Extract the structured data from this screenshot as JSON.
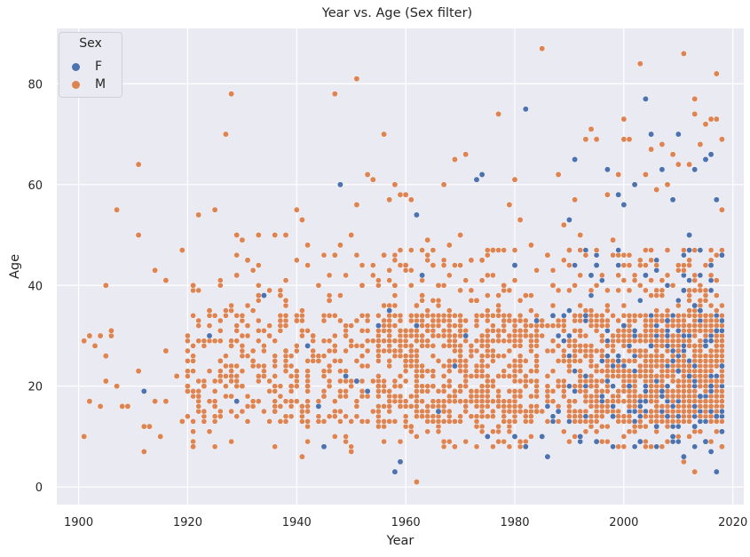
{
  "chart_data": {
    "type": "scatter",
    "title": "Year vs. Age (Sex filter)",
    "xlabel": "Year",
    "ylabel": "Age",
    "xlim": [
      1896,
      2022
    ],
    "ylim": [
      -3.5,
      91
    ],
    "xticks": [
      1900,
      1920,
      1940,
      1960,
      1980,
      2000,
      2020
    ],
    "yticks": [
      0,
      20,
      40,
      60,
      80
    ],
    "grid": true,
    "legend": {
      "title": "Sex",
      "position": "top-left"
    },
    "series": [
      {
        "name": "F",
        "color": "#4c72b0",
        "points": [
          [
            1912,
            19
          ],
          [
            1924,
            30
          ],
          [
            1929,
            17
          ],
          [
            1934,
            38
          ],
          [
            1942,
            28
          ],
          [
            1944,
            16
          ],
          [
            1945,
            8
          ],
          [
            1948,
            60
          ],
          [
            1949,
            22
          ],
          [
            1951,
            21
          ],
          [
            1953,
            19
          ],
          [
            1955,
            32
          ],
          [
            1957,
            35
          ],
          [
            1958,
            3
          ],
          [
            1959,
            5
          ],
          [
            1962,
            54
          ],
          [
            1962,
            32
          ],
          [
            1963,
            42
          ],
          [
            1966,
            15
          ],
          [
            1969,
            24
          ],
          [
            1971,
            30
          ],
          [
            1973,
            61
          ],
          [
            1974,
            62
          ],
          [
            1975,
            10
          ],
          [
            1980,
            44
          ],
          [
            1980,
            10
          ],
          [
            1982,
            75
          ],
          [
            1982,
            8
          ],
          [
            1984,
            33
          ],
          [
            1985,
            10
          ],
          [
            1986,
            6
          ],
          [
            1987,
            34
          ],
          [
            1988,
            15
          ],
          [
            1990,
            53
          ],
          [
            1991,
            65
          ],
          [
            1992,
            10
          ],
          [
            1993,
            34
          ],
          [
            1994,
            42
          ],
          [
            1995,
            44
          ],
          [
            1995,
            9
          ],
          [
            1997,
            63
          ],
          [
            1998,
            14
          ],
          [
            1999,
            58
          ],
          [
            2000,
            56
          ],
          [
            2000,
            32
          ],
          [
            2001,
            20
          ],
          [
            2002,
            60
          ],
          [
            2003,
            9
          ],
          [
            2004,
            77
          ],
          [
            2004,
            42
          ],
          [
            2005,
            70
          ],
          [
            2005,
            28
          ],
          [
            2006,
            12
          ],
          [
            2007,
            63
          ],
          [
            2007,
            19
          ],
          [
            2008,
            33
          ],
          [
            2008,
            14
          ],
          [
            2009,
            57
          ],
          [
            2009,
            10
          ],
          [
            2010,
            70
          ],
          [
            2010,
            23
          ],
          [
            2011,
            39
          ],
          [
            2011,
            6
          ],
          [
            2012,
            50
          ],
          [
            2012,
            22
          ],
          [
            2013,
            63
          ],
          [
            2013,
            36
          ],
          [
            2013,
            12
          ],
          [
            2014,
            35
          ],
          [
            2014,
            18
          ],
          [
            2015,
            65
          ],
          [
            2015,
            28
          ],
          [
            2015,
            9
          ],
          [
            2016,
            66
          ],
          [
            2016,
            44
          ],
          [
            2016,
            20
          ],
          [
            2016,
            7
          ],
          [
            2017,
            57
          ],
          [
            2017,
            31
          ],
          [
            2017,
            14
          ],
          [
            2017,
            3
          ],
          [
            2018,
            46
          ],
          [
            2018,
            24
          ],
          [
            2018,
            11
          ]
        ]
      },
      {
        "name": "M",
        "color": "#dd8452",
        "points": [
          [
            1901,
            10
          ],
          [
            1901,
            29
          ],
          [
            1902,
            17
          ],
          [
            1902,
            30
          ],
          [
            1903,
            28
          ],
          [
            1904,
            16
          ],
          [
            1904,
            30
          ],
          [
            1905,
            21
          ],
          [
            1905,
            26
          ],
          [
            1905,
            40
          ],
          [
            1906,
            30
          ],
          [
            1906,
            31
          ],
          [
            1907,
            20
          ],
          [
            1907,
            55
          ],
          [
            1908,
            16
          ],
          [
            1909,
            16
          ],
          [
            1911,
            23
          ],
          [
            1911,
            50
          ],
          [
            1911,
            64
          ],
          [
            1912,
            7
          ],
          [
            1912,
            12
          ],
          [
            1913,
            12
          ],
          [
            1914,
            17
          ],
          [
            1914,
            43
          ],
          [
            1915,
            10
          ],
          [
            1916,
            17
          ],
          [
            1916,
            27
          ],
          [
            1916,
            41
          ],
          [
            1918,
            22
          ],
          [
            1919,
            47
          ],
          [
            1919,
            13
          ],
          [
            1920,
            19
          ],
          [
            1920,
            20
          ],
          [
            1921,
            40
          ],
          [
            1921,
            8
          ],
          [
            1922,
            54
          ],
          [
            1922,
            18
          ],
          [
            1923,
            20
          ],
          [
            1924,
            35
          ],
          [
            1925,
            55
          ],
          [
            1925,
            16
          ],
          [
            1926,
            25
          ],
          [
            1927,
            70
          ],
          [
            1928,
            78
          ],
          [
            1928,
            28
          ],
          [
            1929,
            50
          ],
          [
            1929,
            42
          ],
          [
            1930,
            49
          ],
          [
            1930,
            20
          ],
          [
            1931,
            45
          ],
          [
            1932,
            25
          ],
          [
            1933,
            50
          ],
          [
            1933,
            38
          ],
          [
            1934,
            22
          ],
          [
            1935,
            30
          ],
          [
            1936,
            50
          ],
          [
            1936,
            15
          ],
          [
            1937,
            38
          ],
          [
            1938,
            50
          ],
          [
            1938,
            27
          ],
          [
            1939,
            20
          ],
          [
            1940,
            55
          ],
          [
            1940,
            33
          ],
          [
            1941,
            53
          ],
          [
            1941,
            6
          ],
          [
            1942,
            48
          ],
          [
            1942,
            20
          ],
          [
            1943,
            30
          ],
          [
            1944,
            25
          ],
          [
            1945,
            18
          ],
          [
            1946,
            37
          ],
          [
            1947,
            78
          ],
          [
            1947,
            46
          ],
          [
            1948,
            48
          ],
          [
            1949,
            30
          ],
          [
            1950,
            50
          ],
          [
            1950,
            7
          ],
          [
            1951,
            81
          ],
          [
            1951,
            56
          ],
          [
            1952,
            40
          ],
          [
            1953,
            62
          ],
          [
            1954,
            61
          ],
          [
            1955,
            20
          ],
          [
            1956,
            70
          ],
          [
            1956,
            46
          ],
          [
            1957,
            57
          ],
          [
            1958,
            60
          ],
          [
            1958,
            40
          ],
          [
            1959,
            58
          ],
          [
            1959,
            16
          ],
          [
            1960,
            58
          ],
          [
            1960,
            44
          ],
          [
            1960,
            25
          ],
          [
            1961,
            57
          ],
          [
            1961,
            12
          ],
          [
            1962,
            1
          ],
          [
            1962,
            36
          ],
          [
            1963,
            38
          ],
          [
            1964,
            49
          ],
          [
            1965,
            44
          ],
          [
            1965,
            20
          ],
          [
            1966,
            40
          ],
          [
            1967,
            60
          ],
          [
            1967,
            28
          ],
          [
            1968,
            48
          ],
          [
            1969,
            65
          ],
          [
            1969,
            8
          ],
          [
            1970,
            50
          ],
          [
            1971,
            66
          ],
          [
            1972,
            45
          ],
          [
            1973,
            37
          ],
          [
            1974,
            45
          ],
          [
            1975,
            28
          ],
          [
            1976,
            47
          ],
          [
            1977,
            74
          ],
          [
            1978,
            40
          ],
          [
            1979,
            56
          ],
          [
            1980,
            61
          ],
          [
            1981,
            53
          ],
          [
            1982,
            38
          ],
          [
            1983,
            48
          ],
          [
            1984,
            15
          ],
          [
            1985,
            87
          ],
          [
            1986,
            46
          ],
          [
            1987,
            40
          ],
          [
            1988,
            62
          ],
          [
            1989,
            52
          ],
          [
            1990,
            47
          ],
          [
            1991,
            57
          ],
          [
            1992,
            50
          ],
          [
            1993,
            69
          ],
          [
            1994,
            71
          ],
          [
            1995,
            69
          ],
          [
            1996,
            33
          ],
          [
            1997,
            58
          ],
          [
            1998,
            49
          ],
          [
            1999,
            62
          ],
          [
            2000,
            73
          ],
          [
            2000,
            69
          ],
          [
            2001,
            69
          ],
          [
            2002,
            60
          ],
          [
            2003,
            84
          ],
          [
            2004,
            62
          ],
          [
            2005,
            67
          ],
          [
            2006,
            59
          ],
          [
            2007,
            68
          ],
          [
            2008,
            60
          ],
          [
            2009,
            66
          ],
          [
            2010,
            64
          ],
          [
            2011,
            86
          ],
          [
            2011,
            5
          ],
          [
            2012,
            64
          ],
          [
            2013,
            77
          ],
          [
            2013,
            74
          ],
          [
            2013,
            3
          ],
          [
            2014,
            68
          ],
          [
            2015,
            72
          ],
          [
            2016,
            73
          ],
          [
            2017,
            82
          ],
          [
            2017,
            73
          ],
          [
            2018,
            69
          ],
          [
            2018,
            55
          ],
          [
            2018,
            8
          ]
        ]
      }
    ]
  }
}
